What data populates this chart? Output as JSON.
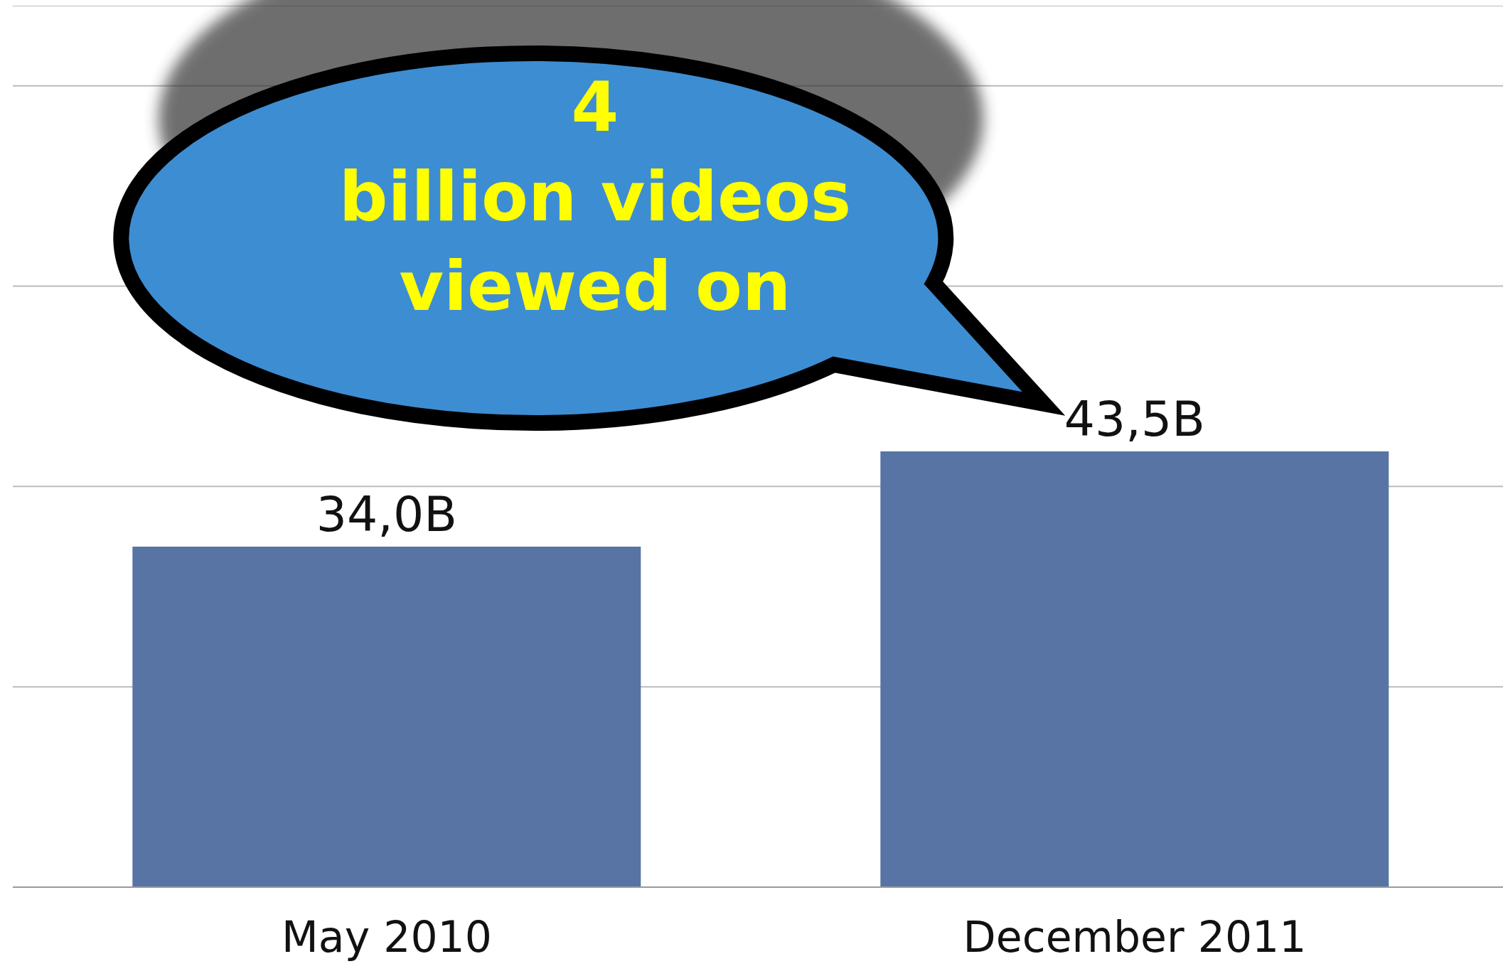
{
  "chart_data": {
    "type": "bar",
    "categories": [
      "May 2010",
      "December 2011"
    ],
    "values": [
      34.0,
      43.5
    ],
    "color": "#5874a4",
    "value_labels": [
      "34,0B",
      "43,5B"
    ],
    "ylim": [
      0,
      88
    ],
    "yticks": [
      {
        "value": 0,
        "label": null
      },
      {
        "value": 20,
        "label": null
      },
      {
        "value": 40,
        "label": null
      },
      {
        "value": 60,
        "label": null
      },
      {
        "value": 80,
        "label": null
      }
    ],
    "tick_labels": "x",
    "grid": "y",
    "annotations": [
      "4\nbillion videos\nviewed on"
    ]
  }
}
